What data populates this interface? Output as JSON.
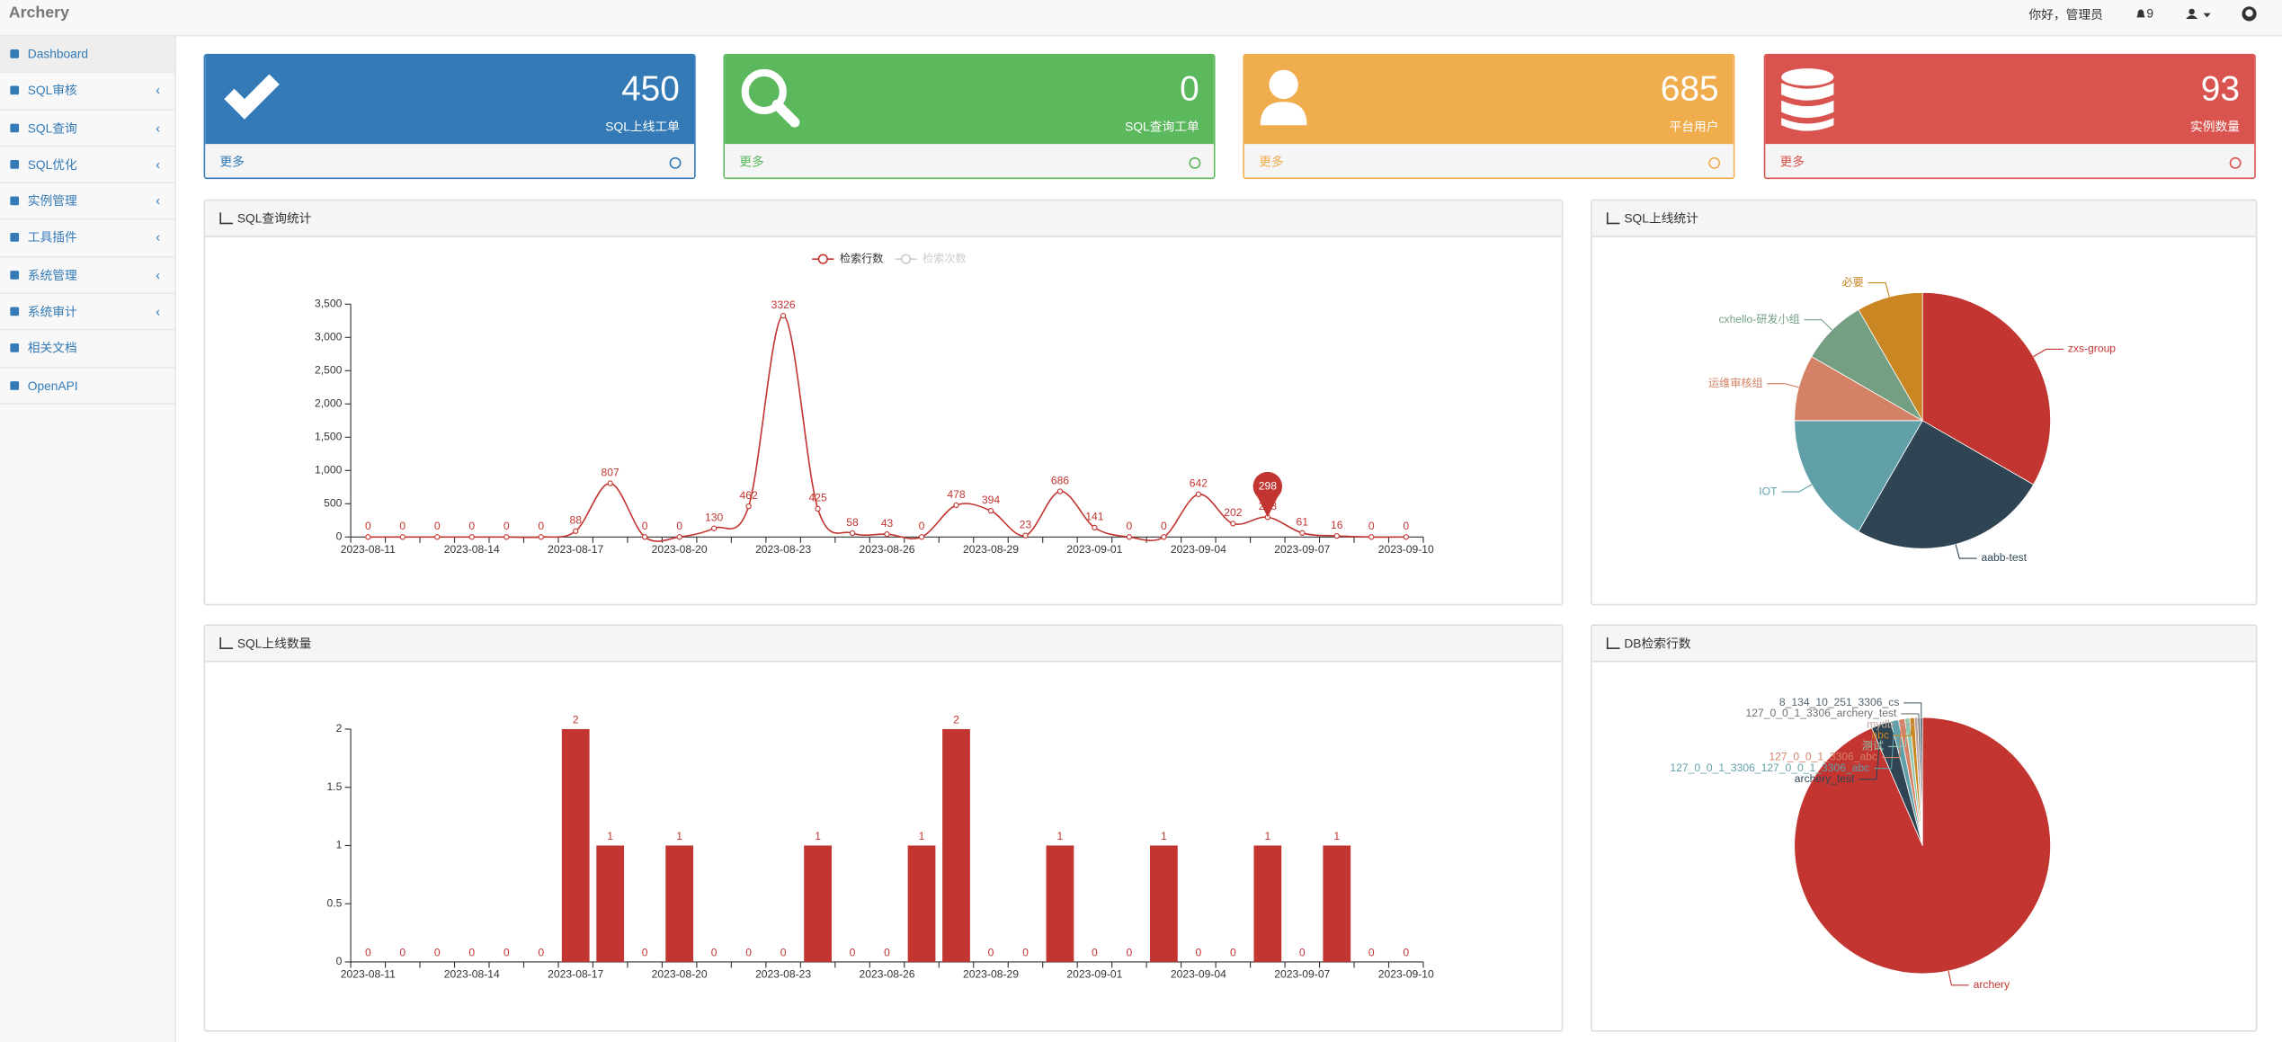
{
  "header": {
    "brand": "Archery",
    "greeting": "你好，管理员",
    "notifications": 9
  },
  "sidebar": {
    "items": [
      "Dashboard",
      "SQL审核",
      "SQL查询",
      "SQL优化",
      "实例管理",
      "工具插件",
      "系统管理",
      "系统审计",
      "相关文档",
      "OpenAPI"
    ]
  },
  "cards": [
    {
      "value": 450,
      "label": "SQL上线工单",
      "link": "更多"
    },
    {
      "value": 0,
      "label": "SQL查询工单",
      "link": "更多"
    },
    {
      "value": 685,
      "label": "平台用户",
      "link": "更多"
    },
    {
      "value": 93,
      "label": "实例数量",
      "link": "更多"
    }
  ],
  "chart_data": [
    {
      "type": "line",
      "title": "SQL查询统计",
      "x": [
        "2023-08-11",
        null,
        null,
        "2023-08-14",
        null,
        null,
        "2023-08-17",
        null,
        null,
        "2023-08-20",
        null,
        null,
        "2023-08-23",
        null,
        null,
        "2023-08-26",
        null,
        null,
        "2023-08-29",
        null,
        null,
        "2023-09-01",
        null,
        null,
        "2023-09-04",
        null,
        null,
        "2023-09-07",
        null,
        null,
        "2023-09-10"
      ],
      "series": [
        {
          "name": "检索行数",
          "color": "#c23531",
          "values": [
            0,
            0,
            0,
            0,
            0,
            0,
            88,
            807,
            0,
            0,
            130,
            462,
            3326,
            425,
            58,
            43,
            0,
            478,
            394,
            23,
            686,
            141,
            0,
            0,
            642,
            202,
            298,
            61,
            16,
            0,
            0
          ]
        }
      ],
      "legend_inactive": [
        {
          "name": "检索次数",
          "color": "#cccccc"
        }
      ],
      "mark_point": {
        "value": 298
      },
      "ylim": [
        0,
        3500
      ],
      "yticks": [
        0,
        500,
        {
          "value": 1000,
          "label": "1,000"
        },
        {
          "value": 1500,
          "label": "1,500"
        },
        {
          "value": 2000,
          "label": "2,000"
        },
        {
          "value": 2500,
          "label": "2,500"
        },
        {
          "value": 3000,
          "label": "3,000"
        },
        {
          "value": 3500,
          "label": "3,500"
        }
      ]
    },
    {
      "type": "bar",
      "title": "SQL上线数量",
      "color": "#c23531",
      "x": [
        "2023-08-11",
        null,
        null,
        "2023-08-14",
        null,
        null,
        "2023-08-17",
        null,
        null,
        "2023-08-20",
        null,
        null,
        "2023-08-23",
        null,
        null,
        "2023-08-26",
        null,
        null,
        "2023-08-29",
        null,
        null,
        "2023-09-01",
        null,
        null,
        "2023-09-04",
        null,
        null,
        "2023-09-07",
        null,
        null,
        "2023-09-10"
      ],
      "values": [
        0,
        0,
        0,
        0,
        0,
        0,
        2,
        1,
        0,
        1,
        0,
        0,
        0,
        1,
        0,
        0,
        1,
        2,
        0,
        0,
        1,
        0,
        0,
        1,
        0,
        0,
        1,
        0,
        1,
        0,
        0
      ],
      "ylim": [
        0,
        2
      ],
      "yticks": [
        0,
        0.5,
        1,
        1.5,
        2
      ]
    },
    {
      "type": "pie",
      "title": "SQL上线统计",
      "categories": [
        "zxs-group",
        "aabb-test",
        "IOT",
        "运维审核组",
        "cxhello-研发小组",
        "必要"
      ],
      "values": [
        4,
        3,
        2,
        1,
        1,
        1
      ],
      "colors": [
        "#c23531",
        "#2f4554",
        "#61a0a8",
        "#d48265",
        "#749f83",
        "#ca8622"
      ]
    },
    {
      "type": "pie",
      "title": "DB检索行数",
      "categories": [
        "archery",
        "archery_test",
        "127_0_0_1_3306_127_0_0_1_3306_abc",
        "127_0_0_1_3306_abc",
        "测试",
        "abc",
        "mydb",
        "127_0_0_1_3306_archery_test",
        "8_134_10_251_3306_cs"
      ],
      "values": [
        93.5,
        2.5,
        1,
        0.8,
        0.6,
        0.6,
        0.4,
        0.3,
        0.3
      ],
      "colors": [
        "#c23531",
        "#2f4554",
        "#61a0a8",
        "#d48265",
        "#91c7ae",
        "#ca8622",
        "#bda29a",
        "#6e7074",
        "#546570"
      ]
    }
  ]
}
